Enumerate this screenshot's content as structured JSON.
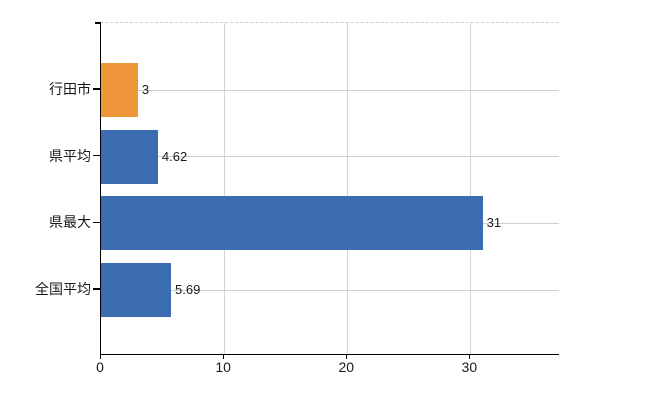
{
  "chart_data": {
    "type": "bar",
    "orientation": "horizontal",
    "title": "",
    "xlabel": "",
    "ylabel": "",
    "categories": [
      "行田市",
      "県平均",
      "県最大",
      "全国平均"
    ],
    "values": [
      3,
      4.62,
      31,
      5.69
    ],
    "value_labels": [
      "3",
      "4.62",
      "31",
      "5.69"
    ],
    "series": [
      {
        "name": "",
        "values": [
          3,
          4.62,
          31,
          5.69
        ]
      }
    ],
    "bar_colors": [
      "#F0973C",
      "#3B6CB0",
      "#3B6CB0",
      "#3B6CB0"
    ],
    "xlim": [
      0,
      37.2
    ],
    "x_ticks": [
      0,
      10,
      20,
      30
    ],
    "x_tick_labels": [
      "0",
      "10",
      "20",
      "30"
    ],
    "grid": true,
    "legend": false
  },
  "colors": {
    "bar_orange": "#F0973C",
    "bar_blue": "#3B6CB0",
    "axis": "#000000",
    "grid_horizontal": "#ccd3c6",
    "grid_vertical": "#d6d2d6",
    "plot_top_border": "#cfcfcf",
    "text": "#1a1a1a",
    "background": "#ffffff"
  }
}
